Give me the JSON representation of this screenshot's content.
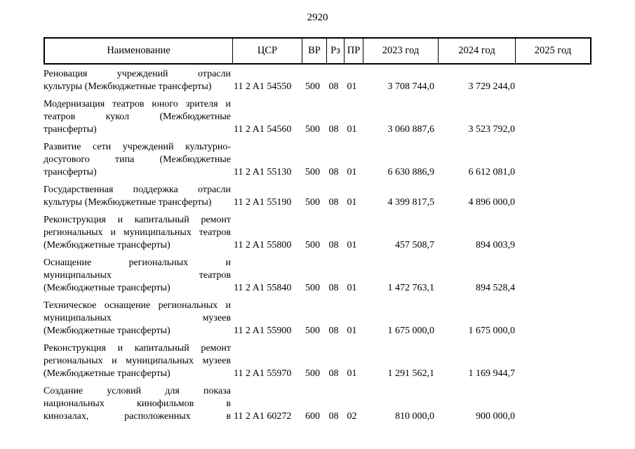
{
  "page": {
    "number": "2920"
  },
  "colors": {
    "text": "#000000",
    "background": "#ffffff",
    "border": "#000000"
  },
  "table": {
    "headers": [
      {
        "key": "name",
        "label": "Наименование"
      },
      {
        "key": "csr",
        "label": "ЦСР"
      },
      {
        "key": "vr",
        "label": "ВР"
      },
      {
        "key": "rz",
        "label": "Рз"
      },
      {
        "key": "pr",
        "label": "ПР"
      },
      {
        "key": "y2023",
        "label": "2023 год"
      },
      {
        "key": "y2024",
        "label": "2024 год"
      },
      {
        "key": "y2025",
        "label": "2025 год"
      }
    ],
    "rows": [
      {
        "name_lines": [
          "Реновация учреждений отрасли",
          "культуры (Межбюджетные трансферты)"
        ],
        "csr": "11 2 A1 54550",
        "vr": "500",
        "rz": "08",
        "pr": "01",
        "y2023": "3 708 744,0",
        "y2024": "3 729 244,0",
        "y2025": ""
      },
      {
        "name_lines": [
          "Модернизация театров юного зрителя и",
          "театров кукол (Межбюджетные",
          "трансферты)"
        ],
        "csr": "11 2 A1 54560",
        "vr": "500",
        "rz": "08",
        "pr": "01",
        "y2023": "3 060 887,6",
        "y2024": "3 523 792,0",
        "y2025": ""
      },
      {
        "name_lines": [
          "Развитие сети учреждений культурно-",
          "досугового типа (Межбюджетные",
          "трансферты)"
        ],
        "csr": "11 2 A1 55130",
        "vr": "500",
        "rz": "08",
        "pr": "01",
        "y2023": "6 630 886,9",
        "y2024": "6 612 081,0",
        "y2025": ""
      },
      {
        "name_lines": [
          "Государственная поддержка отрасли",
          "культуры (Межбюджетные трансферты)"
        ],
        "csr": "11 2 A1 55190",
        "vr": "500",
        "rz": "08",
        "pr": "01",
        "y2023": "4 399 817,5",
        "y2024": "4 896 000,0",
        "y2025": ""
      },
      {
        "name_lines": [
          "Реконструкция и капитальный ремонт",
          "региональных и муниципальных театров",
          "(Межбюджетные трансферты)"
        ],
        "csr": "11 2 A1 55800",
        "vr": "500",
        "rz": "08",
        "pr": "01",
        "y2023": "457 508,7",
        "y2024": "894 003,9",
        "y2025": ""
      },
      {
        "name_lines": [
          "Оснащение региональных и",
          "муниципальных театров",
          "(Межбюджетные трансферты)"
        ],
        "csr": "11 2 A1 55840",
        "vr": "500",
        "rz": "08",
        "pr": "01",
        "y2023": "1 472 763,1",
        "y2024": "894 528,4",
        "y2025": ""
      },
      {
        "name_lines": [
          "Техническое оснащение региональных и",
          "муниципальных музеев",
          "(Межбюджетные трансферты)"
        ],
        "csr": "11 2 A1 55900",
        "vr": "500",
        "rz": "08",
        "pr": "01",
        "y2023": "1 675 000,0",
        "y2024": "1 675 000,0",
        "y2025": ""
      },
      {
        "name_lines": [
          "Реконструкция и капитальный ремонт",
          "региональных и муниципальных музеев",
          "(Межбюджетные трансферты)"
        ],
        "csr": "11 2 A1 55970",
        "vr": "500",
        "rz": "08",
        "pr": "01",
        "y2023": "1 291 562,1",
        "y2024": "1 169 944,7",
        "y2025": ""
      },
      {
        "name_lines": [
          "Создание условий для показа",
          "национальных кинофильмов в",
          "кинозалах, расположенных в"
        ],
        "justify_all": true,
        "csr": "11 2 A1 60272",
        "vr": "600",
        "rz": "08",
        "pr": "02",
        "y2023": "810 000,0",
        "y2024": "900 000,0",
        "y2025": ""
      }
    ]
  }
}
